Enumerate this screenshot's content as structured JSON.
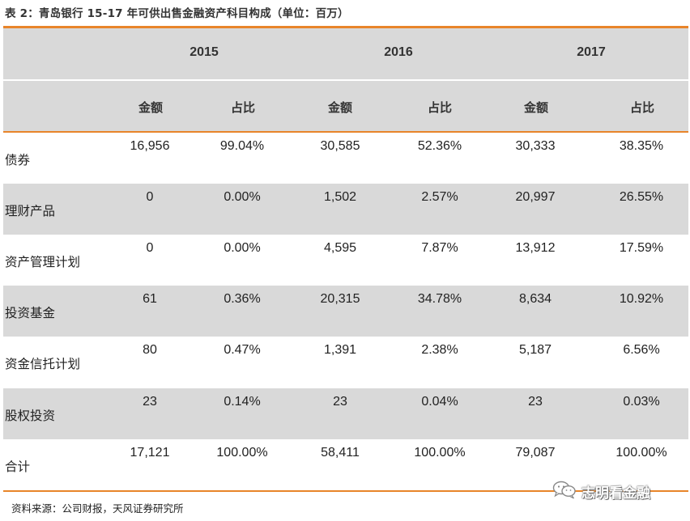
{
  "title": "表 2：青岛银行 15-17 年可供出售金融资产科目构成（单位：百万）",
  "years": [
    "2015",
    "2016",
    "2017"
  ],
  "subheaders": [
    "金额",
    "占比",
    "金额",
    "占比",
    "金额",
    "占比"
  ],
  "rows": [
    {
      "label": "债券",
      "values": [
        "16,956",
        "99.04%",
        "30,585",
        "52.36%",
        "30,333",
        "38.35%"
      ]
    },
    {
      "label": "理财产品",
      "values": [
        "0",
        "0.00%",
        "1,502",
        "2.57%",
        "20,997",
        "26.55%"
      ]
    },
    {
      "label": "资产管理计划",
      "values": [
        "0",
        "0.00%",
        "4,595",
        "7.87%",
        "13,912",
        "17.59%"
      ]
    },
    {
      "label": "投资基金",
      "values": [
        "61",
        "0.36%",
        "20,315",
        "34.78%",
        "8,634",
        "10.92%"
      ]
    },
    {
      "label": "资金信托计划",
      "values": [
        "80",
        "0.47%",
        "1,391",
        "2.38%",
        "5,187",
        "6.56%"
      ]
    },
    {
      "label": "股权投资",
      "values": [
        "23",
        "0.14%",
        "23",
        "0.04%",
        "23",
        "0.03%"
      ]
    },
    {
      "label": "合计",
      "values": [
        "17,121",
        "100.00%",
        "58,411",
        "100.00%",
        "79,087",
        "100.00%"
      ]
    }
  ],
  "source": "资料来源：公司财报，天风证券研究所",
  "watermark": {
    "text": "志明看金融",
    "icon": "wechat-icon"
  },
  "colors": {
    "accent": "#e8852a",
    "shade": "#d9d9d9"
  }
}
